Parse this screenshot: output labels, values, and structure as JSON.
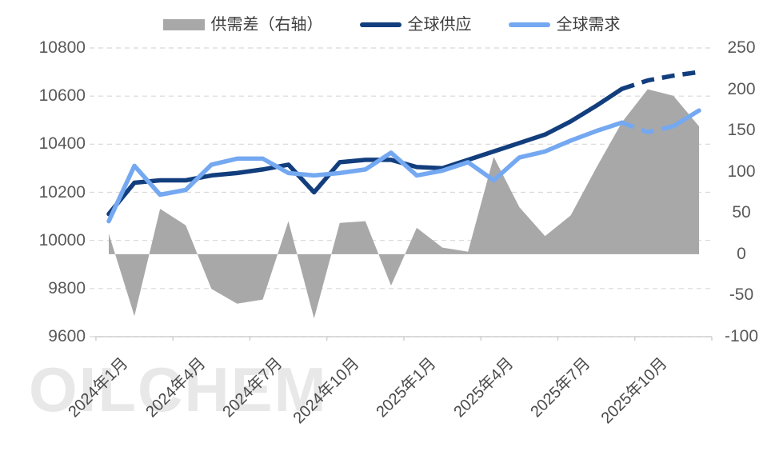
{
  "watermark": "OILCHEM",
  "legend": {
    "items": [
      {
        "label": "供需差（右轴）",
        "swatch": "area",
        "color": "#a8a8a8"
      },
      {
        "label": "全球供应",
        "swatch": "line",
        "color": "#123e7d"
      },
      {
        "label": "全球需求",
        "swatch": "line",
        "color": "#74a8f1"
      }
    ]
  },
  "chart_data": {
    "type": "combo-line-area",
    "title": "",
    "categories": [
      "2024年1月",
      "2024年2月",
      "2024年3月",
      "2024年4月",
      "2024年5月",
      "2024年6月",
      "2024年7月",
      "2024年8月",
      "2024年9月",
      "2024年10月",
      "2024年11月",
      "2024年12月",
      "2025年1月",
      "2025年2月",
      "2025年3月",
      "2025年4月",
      "2025年5月",
      "2025年6月",
      "2025年7月",
      "2025年8月",
      "2025年9月",
      "2025年10月",
      "2025年11月",
      "2025年12月"
    ],
    "x_tick_labels": [
      "2024年1月",
      "2024年4月",
      "2024年7月",
      "2024年10月",
      "2025年1月",
      "2025年4月",
      "2025年7月",
      "2025年10月"
    ],
    "x_tick_month_indexes": [
      0,
      3,
      6,
      9,
      12,
      15,
      18,
      21
    ],
    "left_axis": {
      "min": 9600,
      "max": 10800,
      "step": 200,
      "label_values": [
        10800,
        10600,
        10400,
        10200,
        10000,
        9800,
        9600
      ]
    },
    "right_axis": {
      "min": -100,
      "max": 250,
      "step": 50,
      "label_values": [
        250,
        200,
        150,
        100,
        50,
        0,
        -50,
        -100
      ]
    },
    "grid": {
      "horizontal": true,
      "style": "dashed"
    },
    "legend_position": "top",
    "note_dashed_segments": "dashed line segments at the right end represent forecast months",
    "series": [
      {
        "name": "供需差（右轴）",
        "type": "area",
        "axis": "right",
        "color": "#a8a8a8",
        "values": [
          25,
          -75,
          55,
          35,
          -42,
          -60,
          -55,
          40,
          -78,
          38,
          40,
          -38,
          32,
          8,
          3,
          118,
          57,
          22,
          47,
          105,
          160,
          200,
          192,
          155
        ]
      },
      {
        "name": "全球供应",
        "type": "line",
        "axis": "left",
        "color": "#123e7d",
        "dash_segments": [
          [
            20,
            23
          ]
        ],
        "values": [
          10110,
          10240,
          10250,
          10250,
          10270,
          10280,
          10295,
          10315,
          10200,
          10325,
          10335,
          10335,
          10305,
          10300,
          10335,
          10370,
          10405,
          10440,
          10495,
          10560,
          10630,
          10665,
          10685,
          10700
        ]
      },
      {
        "name": "全球需求",
        "type": "line",
        "axis": "left",
        "color": "#74a8f1",
        "dash_segments": [
          [
            20,
            22
          ]
        ],
        "values": [
          10080,
          10310,
          10190,
          10210,
          10315,
          10340,
          10340,
          10280,
          10270,
          10280,
          10295,
          10365,
          10270,
          10290,
          10325,
          10250,
          10345,
          10370,
          10415,
          10455,
          10490,
          10450,
          10475,
          10540
        ]
      }
    ]
  }
}
